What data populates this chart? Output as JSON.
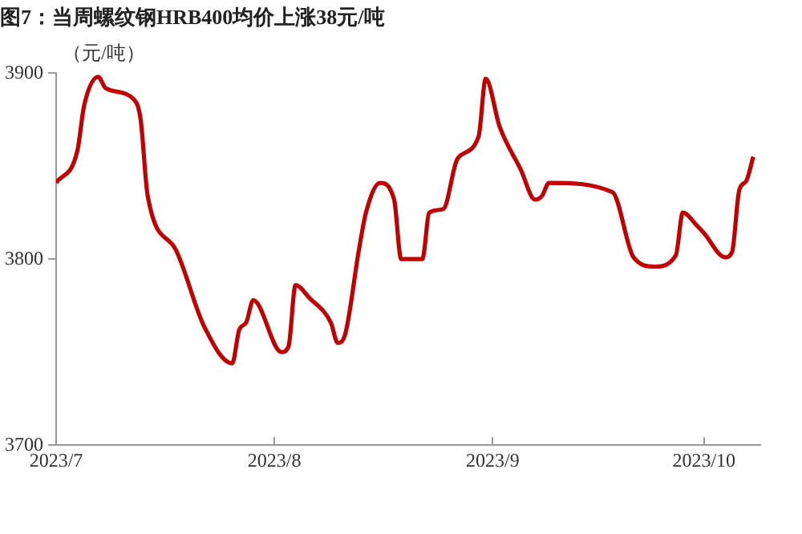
{
  "chart_data": {
    "type": "line",
    "title": "图7：当周螺纹钢HRB400均价上涨38元/吨",
    "ylabel": "（元/吨）",
    "x": [
      "2023-07-01",
      "2023-07-04",
      "2023-07-05",
      "2023-07-07",
      "2023-07-08",
      "2023-07-12",
      "2023-07-13",
      "2023-07-14",
      "2023-07-18",
      "2023-07-22",
      "2023-07-26",
      "2023-07-27",
      "2023-07-28",
      "2023-07-29",
      "2023-08-02",
      "2023-08-03",
      "2023-08-04",
      "2023-08-06",
      "2023-08-09",
      "2023-08-10",
      "2023-08-11",
      "2023-08-13",
      "2023-08-14",
      "2023-08-16",
      "2023-08-18",
      "2023-08-19",
      "2023-08-22",
      "2023-08-23",
      "2023-08-25",
      "2023-08-27",
      "2023-08-30",
      "2023-08-31",
      "2023-09-02",
      "2023-09-05",
      "2023-09-07",
      "2023-09-08",
      "2023-09-09",
      "2023-09-18",
      "2023-09-21",
      "2023-09-24",
      "2023-09-27",
      "2023-09-28",
      "2023-09-30",
      "2023-10-01",
      "2023-10-04",
      "2023-10-05",
      "2023-10-06",
      "2023-10-07",
      "2023-10-08"
    ],
    "series": [
      {
        "color": "#c00000",
        "values": [
          3841,
          3858,
          3883,
          3898,
          3892,
          3886,
          3875,
          3834,
          3805,
          3764,
          3744,
          3762,
          3766,
          3778,
          3750,
          3753,
          3786,
          3779,
          3766,
          3755,
          3759,
          3805,
          3825,
          3841,
          3832,
          3800,
          3800,
          3825,
          3827,
          3854,
          3866,
          3897,
          3871,
          3848,
          3832,
          3834,
          3841,
          3836,
          3801,
          3796,
          3802,
          3825,
          3818,
          3814,
          3801,
          3804,
          3837,
          3842,
          3855
        ]
      }
    ],
    "xlim": [
      "2023-07-01",
      "2023-10-09"
    ],
    "xticks": [
      {
        "value": "2023-07-01",
        "label": "2023/7"
      },
      {
        "value": "2023-08-01",
        "label": "2023/8"
      },
      {
        "value": "2023-09-01",
        "label": "2023/9"
      },
      {
        "value": "2023-10-01",
        "label": "2023/10"
      }
    ],
    "ylim": [
      3700,
      3900
    ],
    "yticks": [
      3700,
      3800,
      3900
    ],
    "grid": false,
    "legend": false,
    "marker": "none",
    "line_style": "solid"
  }
}
